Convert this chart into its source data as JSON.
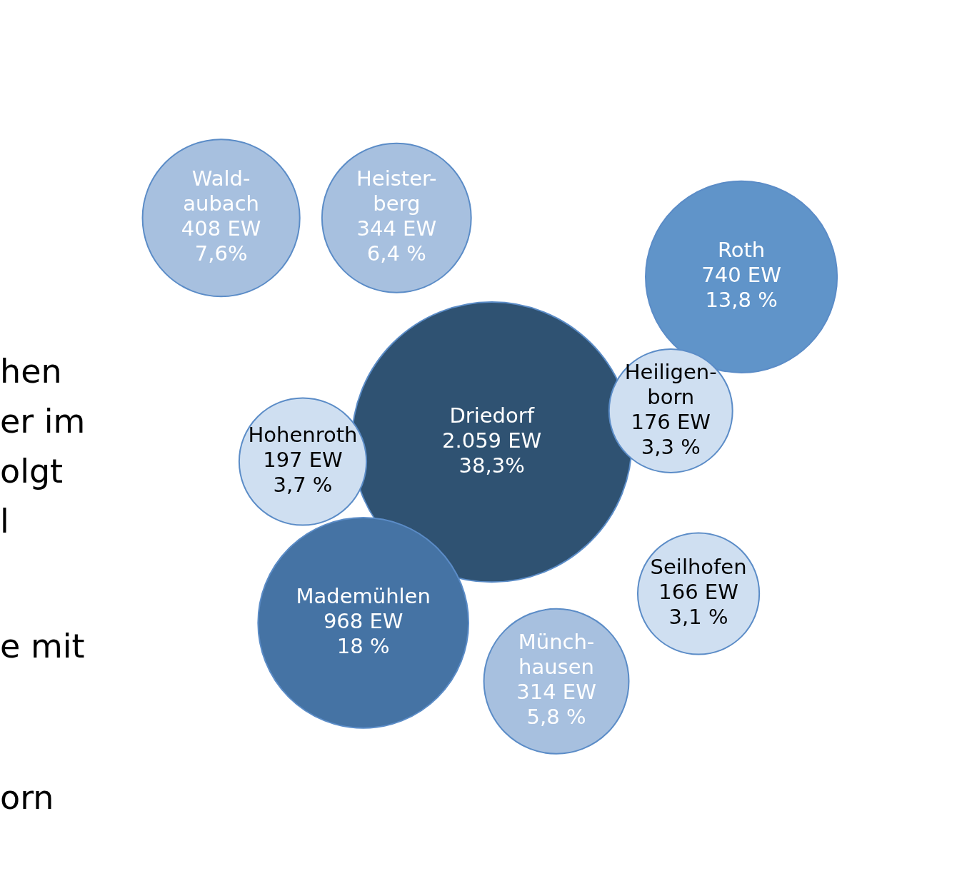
{
  "chart_data": {
    "type": "other",
    "categories": [
      "Wald-\naubach",
      "Heister-\nberg",
      "Roth",
      "Driedorf",
      "Heiligen-\nborn",
      "Hohenroth",
      "Mademühlen",
      "Seilhofen",
      "Münch-\nhausen"
    ],
    "series": [
      {
        "colors": [
          "#a7c0df",
          "#a7c0df",
          "#6094c9",
          "#2f5272",
          "#cfdff1",
          "#cfdff1",
          "#4573a4",
          "#cfdff1",
          "#a7c0df"
        ],
        "values": [
          408,
          344,
          740,
          2059,
          176,
          197,
          968,
          166,
          314
        ],
        "value_labels": [
          "408 EW",
          "344 EW",
          "740 EW",
          "2.059 EW",
          "176 EW",
          "197 EW",
          "968 EW",
          "166 EW",
          "314 EW"
        ]
      },
      {
        "values": [
          7.6,
          6.4,
          13.8,
          38.3,
          3.3,
          3.7,
          18,
          3.1,
          5.8
        ],
        "value_labels": [
          "7,6%",
          "6,4 %",
          "13,8 %",
          "38,3%",
          "3,3 %",
          "3,7 %",
          "18 %",
          "3,1 %",
          "5,8 %"
        ]
      }
    ],
    "annotations": [
      "hen",
      "er im",
      "olgt",
      "l",
      "e mit",
      "orn"
    ]
  }
}
